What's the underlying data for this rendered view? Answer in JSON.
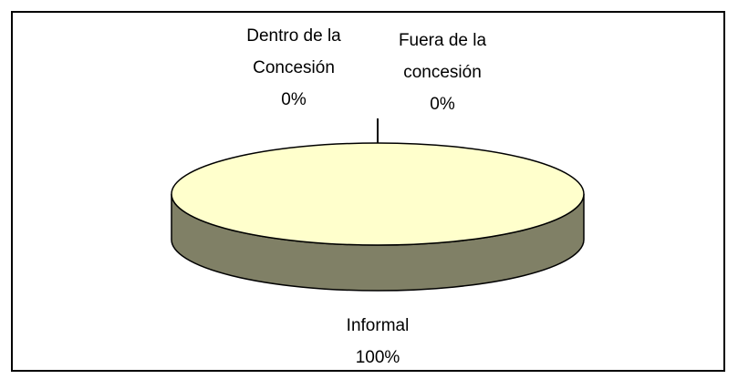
{
  "chart_data": {
    "type": "pie",
    "categories": [
      "Dentro de la Concesión",
      "Fuera de la concesión",
      "Informal"
    ],
    "values": [
      0,
      0,
      100
    ],
    "value_labels": [
      "0%",
      "0%",
      "100%"
    ],
    "color": "#ffffcc"
  }
}
